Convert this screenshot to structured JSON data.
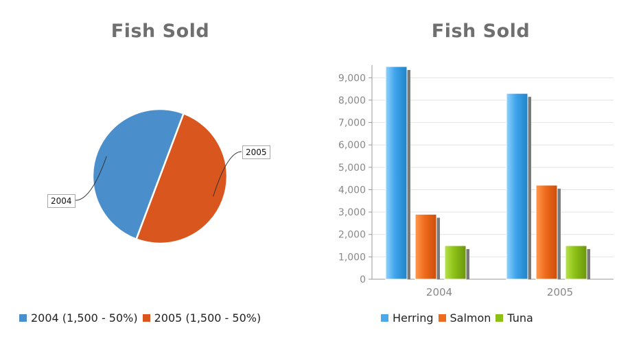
{
  "chart_data": [
    {
      "type": "pie",
      "title": "Fish Sold",
      "slices": [
        {
          "label": "2004",
          "value": 1500,
          "percent": 50,
          "color": "#4a8fcb",
          "legend": "2004 (1,500 - 50%)"
        },
        {
          "label": "2005",
          "value": 1500,
          "percent": 50,
          "color": "#d9561e",
          "legend": "2005 (1,500 - 50%)"
        }
      ]
    },
    {
      "type": "bar",
      "title": "Fish Sold",
      "categories": [
        "2004",
        "2005"
      ],
      "series": [
        {
          "name": "Herring",
          "values": [
            9500,
            8300
          ],
          "color": "#4aa9e8"
        },
        {
          "name": "Salmon",
          "values": [
            2900,
            4200
          ],
          "color": "#ee6a1c"
        },
        {
          "name": "Tuna",
          "values": [
            1500,
            1500
          ],
          "color": "#8cc016"
        }
      ],
      "ylim": [
        0,
        9500
      ],
      "yticks": [
        "0",
        "1,000",
        "2,000",
        "3,000",
        "4,000",
        "5,000",
        "6,000",
        "7,000",
        "8,000",
        "9,000"
      ],
      "grid": true,
      "legend_position": "bottom"
    }
  ]
}
